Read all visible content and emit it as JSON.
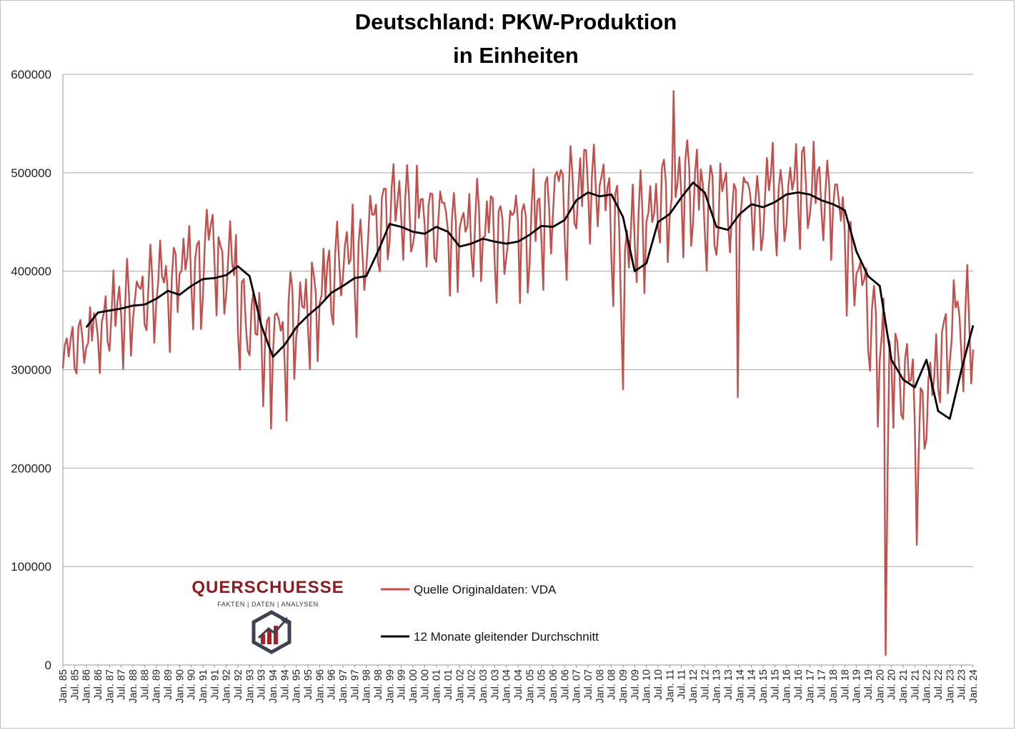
{
  "chart_data": {
    "type": "line",
    "title": [
      "Deutschland: PKW-Produktion",
      "in Einheiten"
    ],
    "xlabel": "",
    "ylabel": "",
    "ylim": [
      0,
      600000
    ],
    "y_ticks": [
      0,
      100000,
      200000,
      300000,
      400000,
      500000,
      600000
    ],
    "y_tick_labels": [
      "0",
      "100000",
      "200000",
      "300000",
      "400000",
      "500000",
      "600000"
    ],
    "x_tick_labels": [
      "Jan. 85",
      "Jul. 85",
      "Jan. 86",
      "Jul. 86",
      "Jan. 87",
      "Jul. 87",
      "Jan. 88",
      "Jul. 88",
      "Jan. 89",
      "Jul. 89",
      "Jan. 90",
      "Jul. 90",
      "Jan. 91",
      "Jul. 91",
      "Jan. 92",
      "Jul. 92",
      "Jan. 93",
      "Jul. 93",
      "Jan. 94",
      "Jul. 94",
      "Jan. 95",
      "Jul. 95",
      "Jan. 96",
      "Jul. 96",
      "Jan. 97",
      "Jul. 97",
      "Jan. 98",
      "Jul. 98",
      "Jan. 99",
      "Jul. 99",
      "Jan. 00",
      "Jul. 00",
      "Jan. 01",
      "Jul. 01",
      "Jan. 02",
      "Jul. 02",
      "Jan. 03",
      "Jul. 03",
      "Jan. 04",
      "Jul. 04",
      "Jan. 05",
      "Jul. 05",
      "Jan. 06",
      "Jul. 06",
      "Jan. 07",
      "Jul. 07",
      "Jan. 08",
      "Jul. 08",
      "Jan. 09",
      "Jul. 09",
      "Jan. 10",
      "Jul. 10",
      "Jan. 11",
      "Jul. 11",
      "Jan. 12",
      "Jul. 12",
      "Jan. 13",
      "Jul. 13",
      "Jan. 14",
      "Jul. 14",
      "Jan. 15",
      "Jul. 15",
      "Jan. 16",
      "Jul. 16",
      "Jan. 17",
      "Jul. 17",
      "Jan. 18",
      "Jul. 18",
      "Jan. 19",
      "Jul. 19",
      "Jan. 20",
      "Jul. 20",
      "Jan. 21",
      "Jul. 21",
      "Jan. 22",
      "Jul. 22",
      "Jan. 23",
      "Jul. 23",
      "Jan. 24"
    ],
    "x_range": [
      "Jan. 85",
      "Jan. 24"
    ],
    "grid": true,
    "series": [
      {
        "name": "Quelle Originaldaten: VDA",
        "color": "#c0504d",
        "kind": "monthly",
        "values": [
          [
            1985,
            310000,
            0.12
          ],
          [
            1988,
            360000,
            0.14
          ],
          [
            1990,
            390000,
            0.14
          ],
          [
            1992,
            405000,
            0.15
          ],
          [
            1993,
            330000,
            0.18
          ],
          [
            1994,
            320000,
            0.17
          ],
          [
            1996,
            375000,
            0.16
          ],
          [
            1998,
            420000,
            0.15
          ],
          [
            1999,
            445000,
            0.13
          ],
          [
            2001,
            440000,
            0.12
          ],
          [
            2003,
            432000,
            0.13
          ],
          [
            2005,
            438000,
            0.13
          ],
          [
            2007,
            470000,
            0.14
          ],
          [
            2008,
            478000,
            0.13
          ],
          [
            2009,
            400000,
            0.18
          ],
          [
            2010,
            445000,
            0.14
          ],
          [
            2011,
            470000,
            0.12
          ],
          [
            2012,
            485000,
            0.12
          ],
          [
            2013,
            445000,
            0.13
          ],
          [
            2015,
            468000,
            0.12
          ],
          [
            2016,
            478000,
            0.12
          ],
          [
            2018,
            465000,
            0.13
          ],
          [
            2019,
            400000,
            0.14
          ],
          [
            2020,
            300000,
            0.22
          ],
          [
            2021,
            280000,
            0.22
          ],
          [
            2022,
            255000,
            0.16
          ],
          [
            2023,
            335000,
            0.16
          ],
          [
            2024,
            345000,
            0.16
          ]
        ],
        "notes_values": {
          "min": 10000,
          "min_at": "Apr. 20",
          "max": 583000,
          "max_at": "2011"
        }
      },
      {
        "name": "12 Monate gleitender Durchschnitt",
        "color": "#000000",
        "kind": "moving_average",
        "points": [
          [
            "Jan. 86",
            343000
          ],
          [
            "Jul. 86",
            358000
          ],
          [
            "Jan. 87",
            360000
          ],
          [
            "Jul. 87",
            362000
          ],
          [
            "Jan. 88",
            365000
          ],
          [
            "Jul. 88",
            366000
          ],
          [
            "Jan. 89",
            372000
          ],
          [
            "Jul. 89",
            380000
          ],
          [
            "Jan. 90",
            376000
          ],
          [
            "Jul. 90",
            385000
          ],
          [
            "Jan. 91",
            392000
          ],
          [
            "Jul. 91",
            393000
          ],
          [
            "Jan. 92",
            396000
          ],
          [
            "Jul. 92",
            405000
          ],
          [
            "Jan. 93",
            395000
          ],
          [
            "Jul. 93",
            345000
          ],
          [
            "Jan. 94",
            313000
          ],
          [
            "Jul. 94",
            325000
          ],
          [
            "Jan. 95",
            343000
          ],
          [
            "Jul. 95",
            355000
          ],
          [
            "Jan. 96",
            365000
          ],
          [
            "Jul. 96",
            378000
          ],
          [
            "Jan. 97",
            385000
          ],
          [
            "Jul. 97",
            393000
          ],
          [
            "Jan. 98",
            395000
          ],
          [
            "Jul. 98",
            420000
          ],
          [
            "Jan. 99",
            448000
          ],
          [
            "Jul. 99",
            445000
          ],
          [
            "Jan. 00",
            440000
          ],
          [
            "Jul. 00",
            438000
          ],
          [
            "Jan. 01",
            445000
          ],
          [
            "Jul. 01",
            440000
          ],
          [
            "Jan. 02",
            425000
          ],
          [
            "Jul. 02",
            428000
          ],
          [
            "Jan. 03",
            433000
          ],
          [
            "Jul. 03",
            430000
          ],
          [
            "Jan. 04",
            428000
          ],
          [
            "Jul. 04",
            430000
          ],
          [
            "Jan. 05",
            437000
          ],
          [
            "Jul. 05",
            446000
          ],
          [
            "Jan. 06",
            445000
          ],
          [
            "Jul. 06",
            452000
          ],
          [
            "Jan. 07",
            472000
          ],
          [
            "Jul. 07",
            480000
          ],
          [
            "Jan. 08",
            476000
          ],
          [
            "Jul. 08",
            478000
          ],
          [
            "Jan. 09",
            455000
          ],
          [
            "Jul. 09",
            400000
          ],
          [
            "Jan. 10",
            408000
          ],
          [
            "Jul. 10",
            450000
          ],
          [
            "Jan. 11",
            458000
          ],
          [
            "Jul. 11",
            475000
          ],
          [
            "Jan. 12",
            490000
          ],
          [
            "Jul. 12",
            480000
          ],
          [
            "Jan. 13",
            445000
          ],
          [
            "Jul. 13",
            442000
          ],
          [
            "Jan. 14",
            458000
          ],
          [
            "Jul. 14",
            468000
          ],
          [
            "Jan. 15",
            465000
          ],
          [
            "Jul. 15",
            470000
          ],
          [
            "Jan. 16",
            478000
          ],
          [
            "Jul. 16",
            480000
          ],
          [
            "Jan. 17",
            478000
          ],
          [
            "Jul. 17",
            472000
          ],
          [
            "Jan. 18",
            468000
          ],
          [
            "Jul. 18",
            462000
          ],
          [
            "Jan. 19",
            420000
          ],
          [
            "Jul. 19",
            395000
          ],
          [
            "Jan. 20",
            385000
          ],
          [
            "Jul. 20",
            310000
          ],
          [
            "Jan. 21",
            290000
          ],
          [
            "Jul. 21",
            282000
          ],
          [
            "Jan. 22",
            310000
          ],
          [
            "Jul. 22",
            258000
          ],
          [
            "Jan. 23",
            250000
          ],
          [
            "Jul. 23",
            300000
          ],
          [
            "Jan. 24",
            345000
          ]
        ]
      }
    ],
    "legend": {
      "placement": "bottom-center",
      "entries": [
        "Quelle Originaldaten: VDA",
        "12 Monate gleitender Durchschnitt"
      ]
    }
  },
  "logo": {
    "name": "QUERSCHUESSE",
    "tagline": "FAKTEN | DATEN | ANALYSEN",
    "icon": "querschuesse-hexagon-logo-icon",
    "color": "#8b1c24"
  }
}
